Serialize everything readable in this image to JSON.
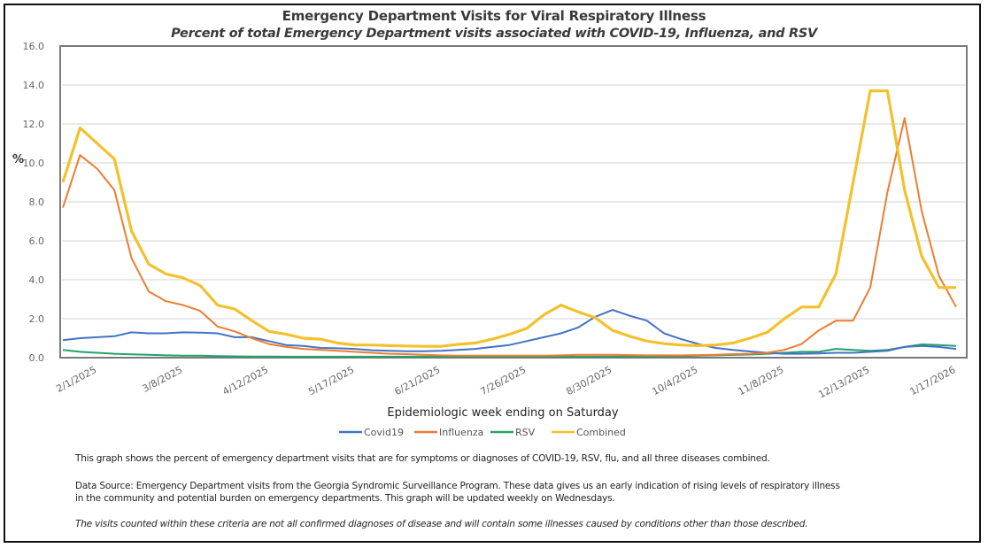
{
  "chart_data": {
    "type": "line",
    "title": "Emergency Department Visits for Viral Respiratory Illness",
    "subtitle": "Percent of total Emergency Department visits associated with COVID-19, Influenza, and RSV",
    "xlabel": "Epidemiologic week ending on Saturday",
    "ylabel": "%",
    "ylim": [
      0,
      16
    ],
    "yticks": [
      "0.0",
      "2.0",
      "4.0",
      "6.0",
      "8.0",
      "10.0",
      "12.0",
      "14.0",
      "16.0"
    ],
    "ytick_values": [
      0,
      2,
      4,
      6,
      8,
      10,
      12,
      14,
      16
    ],
    "grid": true,
    "legend_position": "bottom",
    "x_start": "1/18/2025",
    "x_end": "1/17/2026",
    "x_count": 53,
    "xtick_labels": [
      {
        "index": 2,
        "label": "2/1/2025"
      },
      {
        "index": 7,
        "label": "3/8/2025"
      },
      {
        "index": 12,
        "label": "4/12/2025"
      },
      {
        "index": 17,
        "label": "5/17/2025"
      },
      {
        "index": 22,
        "label": "6/21/2025"
      },
      {
        "index": 27,
        "label": "7/26/2025"
      },
      {
        "index": 32,
        "label": "8/30/2025"
      },
      {
        "index": 37,
        "label": "10/4/2025"
      },
      {
        "index": 42,
        "label": "11/8/2025"
      },
      {
        "index": 47,
        "label": "12/13/2025"
      },
      {
        "index": 52,
        "label": "1/17/2026"
      }
    ],
    "series": [
      {
        "name": "Covid19",
        "color": "#4472c4",
        "values": [
          0.9,
          1.0,
          1.05,
          1.1,
          1.3,
          1.25,
          1.25,
          1.3,
          1.28,
          1.25,
          1.05,
          1.05,
          0.85,
          0.65,
          0.6,
          0.5,
          0.48,
          0.45,
          0.38,
          0.35,
          0.33,
          0.33,
          0.35,
          0.4,
          0.45,
          0.55,
          0.65,
          0.85,
          1.05,
          1.25,
          1.55,
          2.1,
          2.45,
          2.15,
          1.9,
          1.25,
          0.95,
          0.7,
          0.5,
          0.4,
          0.32,
          0.25,
          0.2,
          0.2,
          0.22,
          0.25,
          0.25,
          0.3,
          0.35,
          0.55,
          0.6,
          0.55,
          0.45
        ]
      },
      {
        "name": "Influenza",
        "color": "#ed7d31",
        "values": [
          7.7,
          10.4,
          9.7,
          8.6,
          5.1,
          3.4,
          2.9,
          2.7,
          2.4,
          1.6,
          1.35,
          1.0,
          0.7,
          0.55,
          0.45,
          0.4,
          0.35,
          0.3,
          0.25,
          0.2,
          0.18,
          0.15,
          0.12,
          0.1,
          0.1,
          0.1,
          0.1,
          0.1,
          0.1,
          0.12,
          0.15,
          0.15,
          0.15,
          0.13,
          0.12,
          0.12,
          0.12,
          0.13,
          0.15,
          0.18,
          0.2,
          0.25,
          0.4,
          0.7,
          1.4,
          1.9,
          1.9,
          3.6,
          8.5,
          12.3,
          7.5,
          4.2,
          2.6
        ]
      },
      {
        "name": "RSV",
        "color": "#23a26b",
        "values": [
          0.4,
          0.3,
          0.25,
          0.2,
          0.17,
          0.15,
          0.12,
          0.1,
          0.1,
          0.08,
          0.07,
          0.06,
          0.06,
          0.05,
          0.05,
          0.05,
          0.05,
          0.05,
          0.05,
          0.05,
          0.05,
          0.05,
          0.05,
          0.05,
          0.05,
          0.05,
          0.05,
          0.05,
          0.05,
          0.05,
          0.05,
          0.05,
          0.06,
          0.06,
          0.06,
          0.07,
          0.08,
          0.1,
          0.12,
          0.14,
          0.16,
          0.2,
          0.25,
          0.3,
          0.3,
          0.45,
          0.4,
          0.35,
          0.4,
          0.55,
          0.68,
          0.65,
          0.6
        ]
      },
      {
        "name": "Combined",
        "color": "#f2c12e",
        "values": [
          9.0,
          11.8,
          11.0,
          10.2,
          6.5,
          4.8,
          4.3,
          4.1,
          3.7,
          2.7,
          2.5,
          1.9,
          1.35,
          1.2,
          1.0,
          0.95,
          0.75,
          0.65,
          0.65,
          0.62,
          0.6,
          0.58,
          0.58,
          0.68,
          0.75,
          0.95,
          1.2,
          1.5,
          2.2,
          2.7,
          2.35,
          2.05,
          1.4,
          1.1,
          0.85,
          0.72,
          0.65,
          0.62,
          0.65,
          0.75,
          1.0,
          1.3,
          2.0,
          2.6,
          2.6,
          4.3,
          9.0,
          13.7,
          13.7,
          8.6,
          5.2,
          3.6,
          3.6
        ]
      }
    ]
  },
  "notes": {
    "line1": "This graph shows the percent of emergency department visits that are for symptoms or diagnoses of COVID-19, RSV, flu, and all three diseases combined.",
    "line2a": "Data Source: Emergency Department visits from the Georgia Syndromic Surveillance Program. These data gives us an early indication of rising levels of respiratory illness",
    "line2b": "in the community and potential burden on emergency departments. This graph will be updated weekly on Wednesdays.",
    "line3": "The visits counted within these criteria are not all confirmed diagnoses of disease and will contain some illnesses caused by conditions other than those described."
  }
}
